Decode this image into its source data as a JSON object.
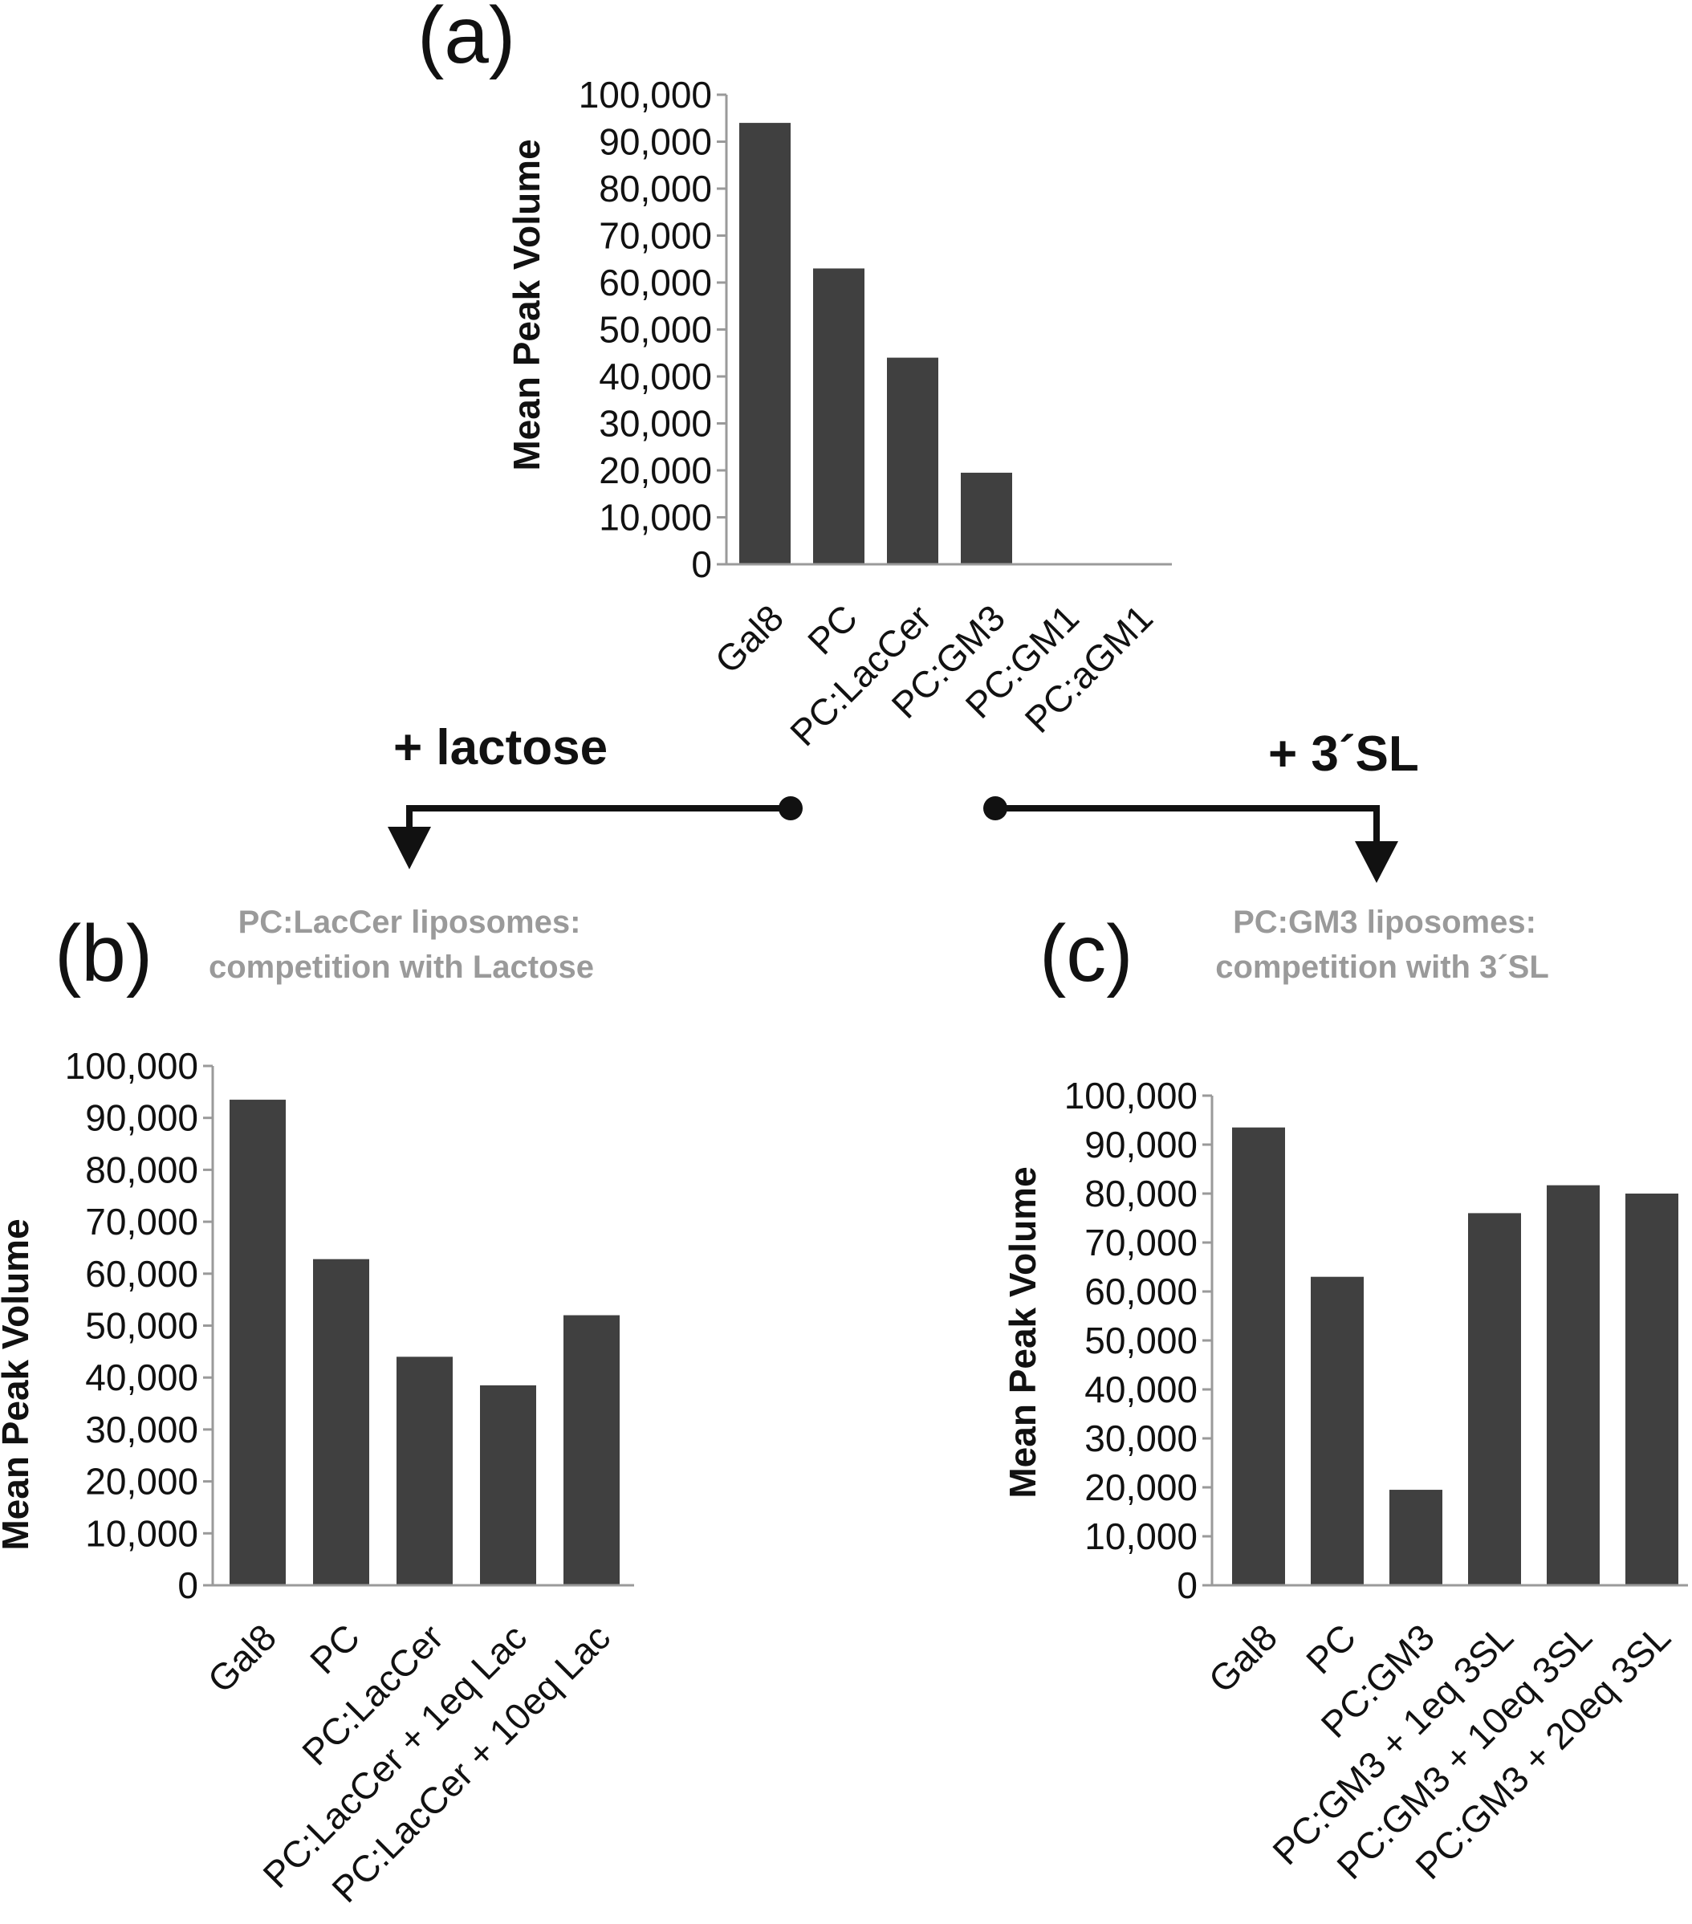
{
  "colors": {
    "bar": "#404040",
    "axis": "#9a9a9a",
    "text": "#111111",
    "subtitle": "#9a9a9a"
  },
  "arrows": {
    "left_label": "+ lactose",
    "right_label": "+ 3´SL"
  },
  "chart_data": [
    {
      "id": "a",
      "type": "bar",
      "panel_label": "(a)",
      "title": "",
      "ylabel": "Mean Peak Volume",
      "xlabel": "",
      "ylim": [
        0,
        100000
      ],
      "yticks": [
        "0",
        "10,000",
        "20,000",
        "30,000",
        "40,000",
        "50,000",
        "60,000",
        "70,000",
        "80,000",
        "90,000",
        "100,000"
      ],
      "categories": [
        "Gal8",
        "PC",
        "PC:LacCer",
        "PC:GM3",
        "PC:GM1",
        "PC:aGM1"
      ],
      "values": [
        94000,
        63000,
        44000,
        19500,
        0,
        0
      ]
    },
    {
      "id": "b",
      "type": "bar",
      "panel_label": "(b)",
      "title": "PC:LacCer liposomes:",
      "subtitle": "competition with Lactose",
      "ylabel": "Mean Peak Volume",
      "xlabel": "",
      "ylim": [
        0,
        100000
      ],
      "yticks": [
        "0",
        "10,000",
        "20,000",
        "30,000",
        "40,000",
        "50,000",
        "60,000",
        "70,000",
        "80,000",
        "90,000",
        "100,000"
      ],
      "categories": [
        "Gal8",
        "PC",
        "PC:LacCer",
        "PC:LacCer + 1eq Lac",
        "PC:LacCer + 10eq Lac"
      ],
      "values": [
        93500,
        62800,
        44000,
        38500,
        52000
      ]
    },
    {
      "id": "c",
      "type": "bar",
      "panel_label": "(c)",
      "title": "PC:GM3 liposomes:",
      "subtitle": "competition with 3´SL",
      "ylabel": "Mean Peak Volume",
      "xlabel": "",
      "ylim": [
        0,
        100000
      ],
      "yticks": [
        "0",
        "10,000",
        "20,000",
        "30,000",
        "40,000",
        "50,000",
        "60,000",
        "70,000",
        "80,000",
        "90,000",
        "100,000"
      ],
      "categories": [
        "Gal8",
        "PC",
        "PC:GM3",
        "PC:GM3 + 1eq 3SL",
        "PC:GM3 + 10eq 3SL",
        "PC:GM3 + 20eq 3SL"
      ],
      "values": [
        93500,
        63000,
        19500,
        76000,
        81700,
        80000
      ]
    }
  ]
}
